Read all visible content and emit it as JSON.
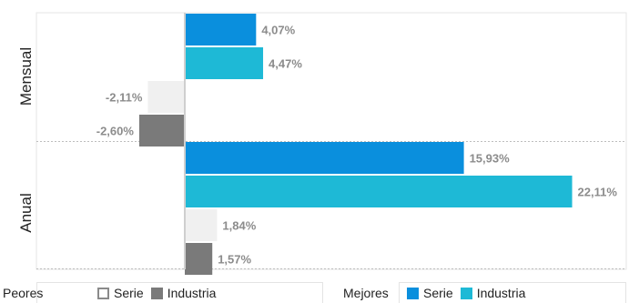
{
  "chart_data": {
    "type": "bar",
    "orientation": "horizontal",
    "groups": [
      "Mensual",
      "Anual"
    ],
    "series": [
      {
        "name": "Serie",
        "set": "Mejores",
        "values": [
          4.07,
          15.93
        ]
      },
      {
        "name": "Industria",
        "set": "Mejores",
        "values": [
          4.47,
          22.11
        ]
      },
      {
        "name": "Serie",
        "set": "Peores",
        "values": [
          -2.11,
          1.84
        ]
      },
      {
        "name": "Industria",
        "set": "Peores",
        "values": [
          -2.6,
          1.57
        ]
      }
    ],
    "data_labels": [
      [
        "4,07%",
        "4,47%",
        "-2,11%",
        "-2,60%"
      ],
      [
        "15,93%",
        "22,11%",
        "1,84%",
        "1,57%"
      ]
    ],
    "xlim": [
      -3.5,
      25.2
    ],
    "grid": false,
    "legend_position": "bottom",
    "colors": {
      "mejores_serie": "#0a8fdd",
      "mejores_industria": "#1eb9d6",
      "peores_serie": "#f0f0f0",
      "peores_industria": "#7a7a7a",
      "label_text": "#8c8c8c",
      "axis_zero": "#cfcfcf",
      "separator": "#bdbdbd"
    }
  },
  "legend": {
    "peores": {
      "title": "Peores",
      "serie": "Serie",
      "industria": "Industria"
    },
    "mejores": {
      "title": "Mejores",
      "serie": "Serie",
      "industria": "Industria"
    }
  }
}
